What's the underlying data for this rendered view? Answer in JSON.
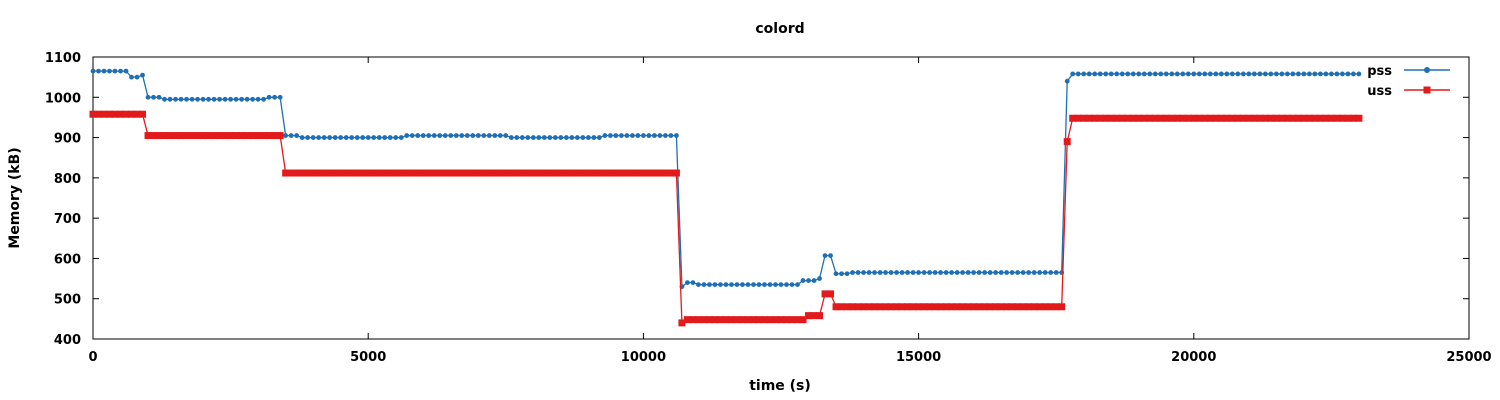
{
  "chart_data": {
    "type": "line",
    "title": "colord",
    "xlabel": "time (s)",
    "ylabel": "Memory (kB)",
    "xlim": [
      0,
      25000
    ],
    "ylim": [
      400,
      1100
    ],
    "xticks": [
      0,
      5000,
      10000,
      15000,
      20000,
      25000
    ],
    "yticks": [
      400,
      500,
      600,
      700,
      800,
      900,
      1000,
      1100
    ],
    "grid": false,
    "legend_position": "top-right",
    "sample_interval": 100,
    "x_end": 23000,
    "series": [
      {
        "name": "pss",
        "color": "#1f6fb5",
        "marker": "circle",
        "segments": [
          {
            "from": 0,
            "to": 600,
            "value": 1065
          },
          {
            "from": 700,
            "to": 800,
            "value": 1050
          },
          {
            "from": 900,
            "to": 900,
            "value": 1055
          },
          {
            "from": 1000,
            "to": 1200,
            "value": 1000
          },
          {
            "from": 1300,
            "to": 3100,
            "value": 995
          },
          {
            "from": 3200,
            "to": 3400,
            "value": 1000
          },
          {
            "from": 3500,
            "to": 3700,
            "value": 905
          },
          {
            "from": 3800,
            "to": 5600,
            "value": 900
          },
          {
            "from": 5700,
            "to": 7500,
            "value": 905
          },
          {
            "from": 7600,
            "to": 9200,
            "value": 900
          },
          {
            "from": 9300,
            "to": 10600,
            "value": 905
          },
          {
            "from": 10700,
            "to": 10700,
            "value": 530
          },
          {
            "from": 10800,
            "to": 10900,
            "value": 540
          },
          {
            "from": 11000,
            "to": 12800,
            "value": 535
          },
          {
            "from": 12900,
            "to": 13100,
            "value": 545
          },
          {
            "from": 13200,
            "to": 13200,
            "value": 550
          },
          {
            "from": 13300,
            "to": 13400,
            "value": 607
          },
          {
            "from": 13500,
            "to": 13700,
            "value": 562
          },
          {
            "from": 13800,
            "to": 17600,
            "value": 565
          },
          {
            "from": 17700,
            "to": 17700,
            "value": 1040
          },
          {
            "from": 17800,
            "to": 23000,
            "value": 1058
          }
        ]
      },
      {
        "name": "uss",
        "color": "#e31a1c",
        "marker": "square",
        "segments": [
          {
            "from": 0,
            "to": 900,
            "value": 958
          },
          {
            "from": 1000,
            "to": 3400,
            "value": 905
          },
          {
            "from": 3500,
            "to": 10600,
            "value": 812
          },
          {
            "from": 10700,
            "to": 10700,
            "value": 440
          },
          {
            "from": 10800,
            "to": 12900,
            "value": 448
          },
          {
            "from": 13000,
            "to": 13200,
            "value": 458
          },
          {
            "from": 13300,
            "to": 13400,
            "value": 512
          },
          {
            "from": 13500,
            "to": 17600,
            "value": 480
          },
          {
            "from": 17700,
            "to": 17700,
            "value": 890
          },
          {
            "from": 17800,
            "to": 23000,
            "value": 948
          }
        ]
      }
    ]
  }
}
